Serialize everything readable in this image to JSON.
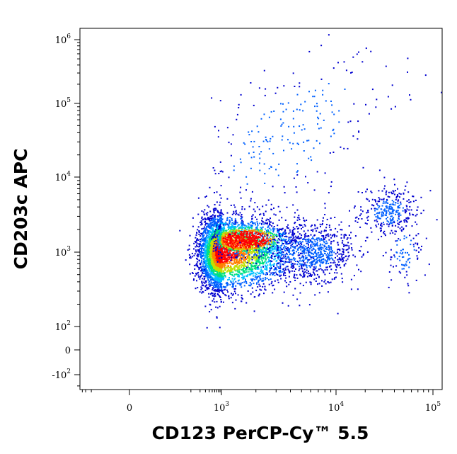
{
  "chart_data": {
    "type": "scatter",
    "style": "density-colored flow cytometry dot plot",
    "xlabel": "CD123 PerCP-Cy™ 5.5",
    "ylabel": "CD203c APC",
    "x_scale": "biexponential",
    "y_scale": "biexponential",
    "x_range": [
      -400,
      120000
    ],
    "y_range": [
      -250,
      1300000
    ],
    "x_ticks": [
      {
        "base": "0",
        "exp": "",
        "value": 0
      },
      {
        "base": "10",
        "exp": "3",
        "value": 1000
      },
      {
        "base": "10",
        "exp": "4",
        "value": 10000
      },
      {
        "base": "10",
        "exp": "5",
        "value": 100000
      }
    ],
    "y_ticks": [
      {
        "base": "-10",
        "exp": "2",
        "value": -100
      },
      {
        "base": "0",
        "exp": "",
        "value": 0
      },
      {
        "base": "10",
        "exp": "2",
        "value": 100
      },
      {
        "base": "10",
        "exp": "3",
        "value": 1000
      },
      {
        "base": "10",
        "exp": "4",
        "value": 10000
      },
      {
        "base": "10",
        "exp": "5",
        "value": 100000
      },
      {
        "base": "10",
        "exp": "6",
        "value": 1000000
      }
    ],
    "density_colors": [
      "#0000d0",
      "#0060ff",
      "#00c0ff",
      "#00e080",
      "#c0e000",
      "#ff8000",
      "#ff0000"
    ],
    "populations": [
      {
        "x_center": 900,
        "y_center": 1000,
        "x_spread_decades": 0.35,
        "y_spread_decades": 0.25,
        "points": 4200,
        "density": "high"
      },
      {
        "x_center": 1600,
        "y_center": 1500,
        "x_spread_decades": 0.18,
        "y_spread_decades": 0.1,
        "points": 900,
        "density": "peak"
      },
      {
        "x_center": 6000,
        "y_center": 1000,
        "x_spread_decades": 0.2,
        "y_spread_decades": 0.2,
        "points": 700,
        "density": "low"
      },
      {
        "x_center": 35000,
        "y_center": 3500,
        "x_spread_decades": 0.15,
        "y_spread_decades": 0.15,
        "points": 320,
        "density": "low"
      },
      {
        "x_center": 50000,
        "y_center": 1000,
        "x_spread_decades": 0.1,
        "y_spread_decades": 0.22,
        "points": 90,
        "density": "low"
      },
      {
        "x_center": 4000,
        "y_center": 40000,
        "x_spread_decades": 0.5,
        "y_spread_decades": 0.55,
        "points": 260,
        "density": "low"
      }
    ]
  }
}
